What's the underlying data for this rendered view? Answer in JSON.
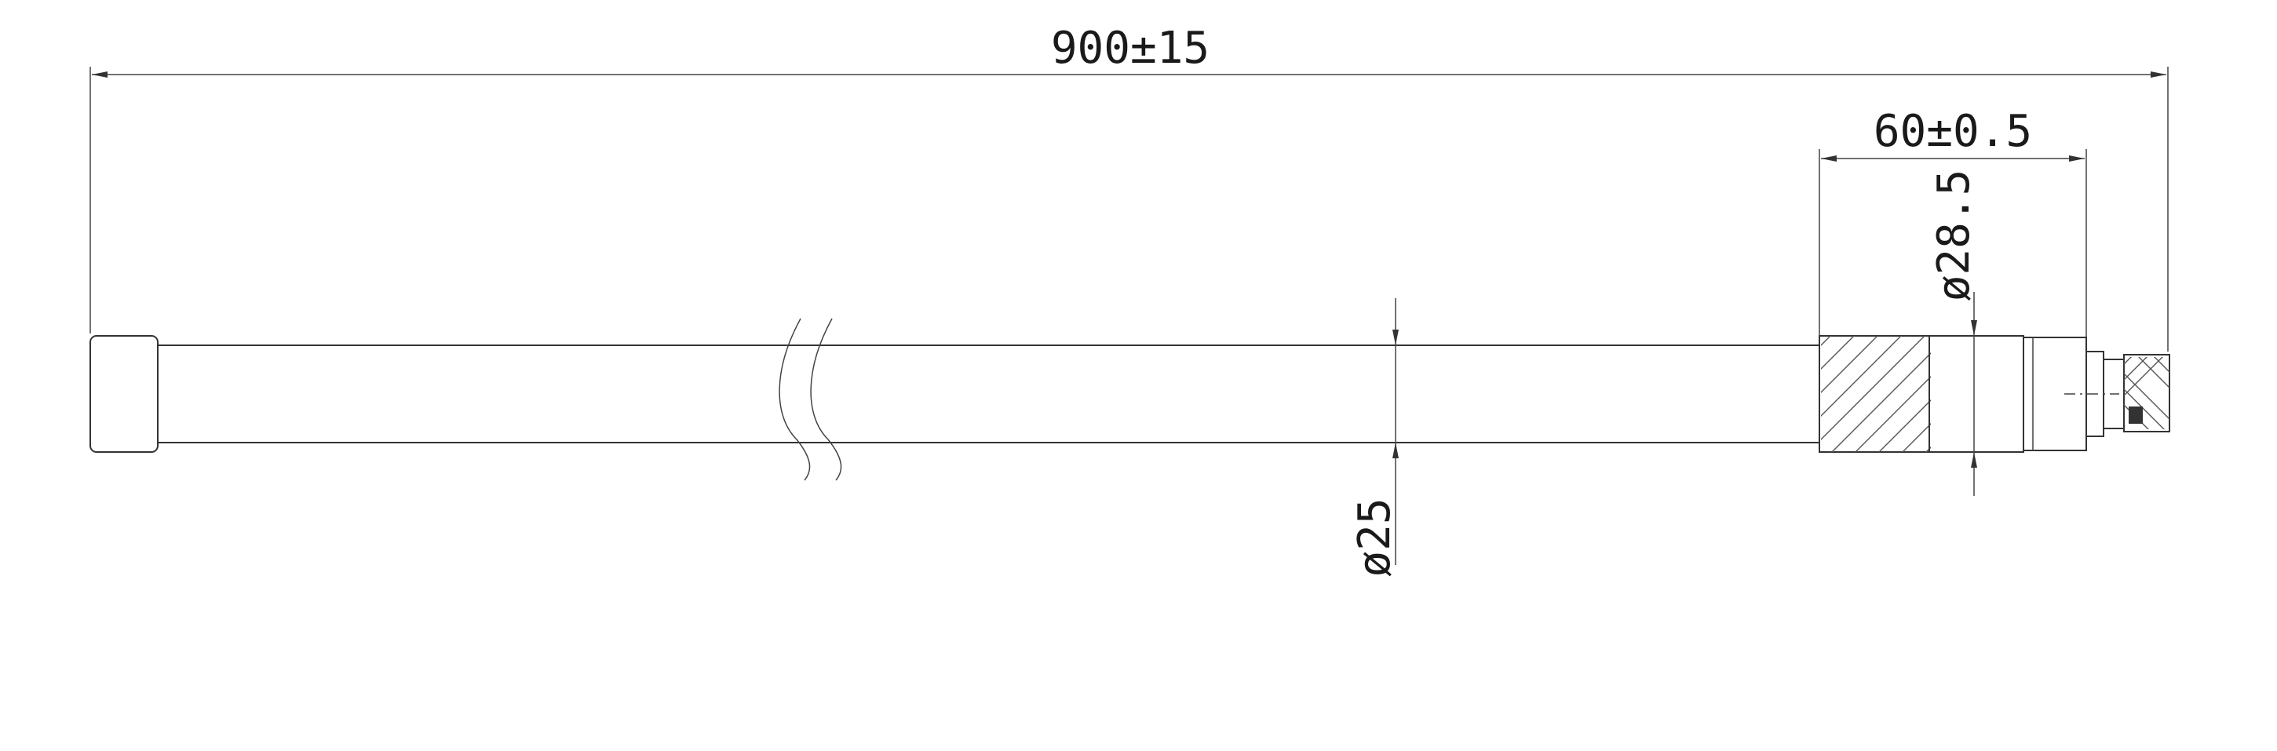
{
  "dimensions": {
    "overall_length": "900±15",
    "connector_length": "60±0.5",
    "base_diameter": "ø28.5",
    "tube_diameter": "ø25"
  },
  "colors": {
    "line": "#333333",
    "background": "#ffffff"
  }
}
